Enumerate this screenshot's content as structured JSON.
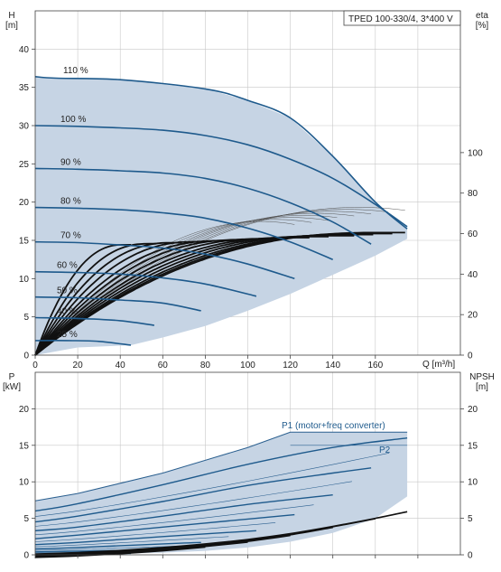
{
  "chart_data": [
    {
      "type": "line",
      "title": "TPED 100-330/4, 3*400 V",
      "xlabel": "Q [m³/h]",
      "ylabel": "H\n[m]",
      "ylabel_right": "eta\n[%]",
      "xlim": [
        0,
        200
      ],
      "ylim": [
        0,
        45
      ],
      "ylim_right": [
        0,
        170
      ],
      "x_ticks": [
        0,
        20,
        40,
        60,
        80,
        100,
        120,
        140,
        160
      ],
      "y_ticks": [
        0,
        5,
        10,
        15,
        20,
        25,
        30,
        35,
        40
      ],
      "y_ticks_right": [
        0,
        20,
        40,
        60,
        80,
        100
      ],
      "grid": true,
      "head_series": [
        {
          "name": "110 %",
          "x": [
            0,
            10,
            40,
            80,
            100,
            120,
            140,
            160,
            175
          ],
          "y": [
            36.4,
            36.2,
            36.0,
            34.8,
            33.3,
            31.0,
            26.0,
            20.0,
            16.5
          ]
        },
        {
          "name": "100 %",
          "x": [
            0,
            20,
            40,
            60,
            80,
            100,
            120,
            140,
            160,
            175
          ],
          "y": [
            30.0,
            29.9,
            29.7,
            29.4,
            28.7,
            27.5,
            25.6,
            23.1,
            19.7,
            16.8
          ]
        },
        {
          "name": "90 %",
          "x": [
            0,
            20,
            40,
            60,
            80,
            100,
            120,
            140,
            158
          ],
          "y": [
            24.4,
            24.3,
            24.1,
            23.8,
            23.1,
            21.8,
            19.9,
            17.4,
            14.5
          ]
        },
        {
          "name": "80 %",
          "x": [
            0,
            20,
            40,
            60,
            80,
            100,
            120,
            140
          ],
          "y": [
            19.3,
            19.2,
            19.0,
            18.6,
            17.9,
            16.6,
            14.8,
            12.5
          ]
        },
        {
          "name": "70 %",
          "x": [
            0,
            20,
            40,
            60,
            80,
            100,
            122
          ],
          "y": [
            14.8,
            14.7,
            14.4,
            14.0,
            13.2,
            11.9,
            10.0
          ]
        },
        {
          "name": "60 %",
          "x": [
            0,
            20,
            40,
            60,
            80,
            104
          ],
          "y": [
            10.9,
            10.8,
            10.6,
            10.1,
            9.3,
            7.7
          ]
        },
        {
          "name": "50 %",
          "x": [
            0,
            20,
            40,
            60,
            78
          ],
          "y": [
            7.6,
            7.5,
            7.2,
            6.8,
            5.8
          ]
        },
        {
          "name": "40 %",
          "x": [
            0,
            20,
            40,
            56
          ],
          "y": [
            4.9,
            4.8,
            4.5,
            3.9
          ]
        },
        {
          "name": "25 %",
          "x": [
            0,
            15,
            30,
            45
          ],
          "y": [
            1.9,
            1.9,
            1.8,
            1.3
          ]
        }
      ],
      "operating_envelope": {
        "x": [
          0,
          10,
          40,
          80,
          100,
          120,
          140,
          160,
          175,
          175,
          160,
          140,
          120,
          100,
          80,
          60,
          45,
          20,
          10,
          0
        ],
        "y": [
          36.4,
          36.2,
          36.0,
          34.8,
          33.3,
          31.0,
          26.0,
          20.0,
          16.5,
          15.2,
          13.0,
          10.5,
          8.0,
          5.8,
          3.8,
          2.3,
          1.3,
          1.0,
          0.5,
          0
        ]
      },
      "min_flow_limit_q": 10
    },
    {
      "type": "line",
      "xlabel": "",
      "ylabel": "P\n[kW]",
      "ylabel_right": "NPSH\n[m]",
      "xlim": [
        0,
        200
      ],
      "ylim": [
        0,
        25
      ],
      "y_ticks": [
        0,
        5,
        10,
        15,
        20
      ],
      "y_ticks_right": [
        0,
        5,
        10,
        15,
        20
      ],
      "grid": true,
      "annotations": [
        "P1 (motor+freq converter)",
        "P2"
      ],
      "power_series": [
        {
          "name": "P1 (motor+freq converter)",
          "x": [
            120,
            175
          ],
          "y": [
            16.8,
            16.8
          ]
        },
        {
          "x": [
            0,
            20,
            60,
            100,
            140,
            175
          ],
          "y": [
            6.0,
            7.0,
            9.6,
            12.4,
            14.7,
            16.0
          ]
        },
        {
          "x": [
            0,
            20,
            60,
            100,
            140,
            158
          ],
          "y": [
            4.5,
            5.3,
            7.3,
            9.5,
            11.2,
            11.9
          ]
        },
        {
          "x": [
            0,
            20,
            60,
            100,
            140
          ],
          "y": [
            3.3,
            3.8,
            5.3,
            6.9,
            8.2
          ]
        },
        {
          "x": [
            0,
            20,
            60,
            100,
            122
          ],
          "y": [
            2.2,
            2.7,
            3.8,
            4.9,
            5.5
          ]
        },
        {
          "x": [
            0,
            20,
            60,
            104
          ],
          "y": [
            1.4,
            1.7,
            2.5,
            3.3
          ]
        },
        {
          "x": [
            0,
            20,
            60,
            78
          ],
          "y": [
            0.8,
            1.0,
            1.5,
            1.7
          ]
        },
        {
          "x": [
            0,
            20,
            56
          ],
          "y": [
            0.4,
            0.5,
            0.7
          ]
        },
        {
          "x": [
            0,
            20,
            45
          ],
          "y": [
            0.1,
            0.15,
            0.2
          ]
        }
      ],
      "power_envelope": {
        "x": [
          0,
          20,
          60,
          100,
          120,
          175,
          175,
          160,
          140,
          120,
          100,
          80,
          60,
          45,
          20,
          0
        ],
        "y": [
          7.4,
          8.4,
          11.2,
          14.7,
          16.8,
          16.8,
          8.0,
          5.0,
          3.0,
          1.8,
          1.0,
          0.55,
          0.3,
          0.2,
          0.1,
          0.0
        ]
      },
      "npsh_series": [
        {
          "x": [
            0,
            20,
            40,
            60,
            80,
            100,
            120,
            140,
            160,
            175
          ],
          "y": [
            0.1,
            0.3,
            0.6,
            1.0,
            1.5,
            2.1,
            2.9,
            3.9,
            5.0,
            5.9
          ]
        }
      ]
    }
  ]
}
